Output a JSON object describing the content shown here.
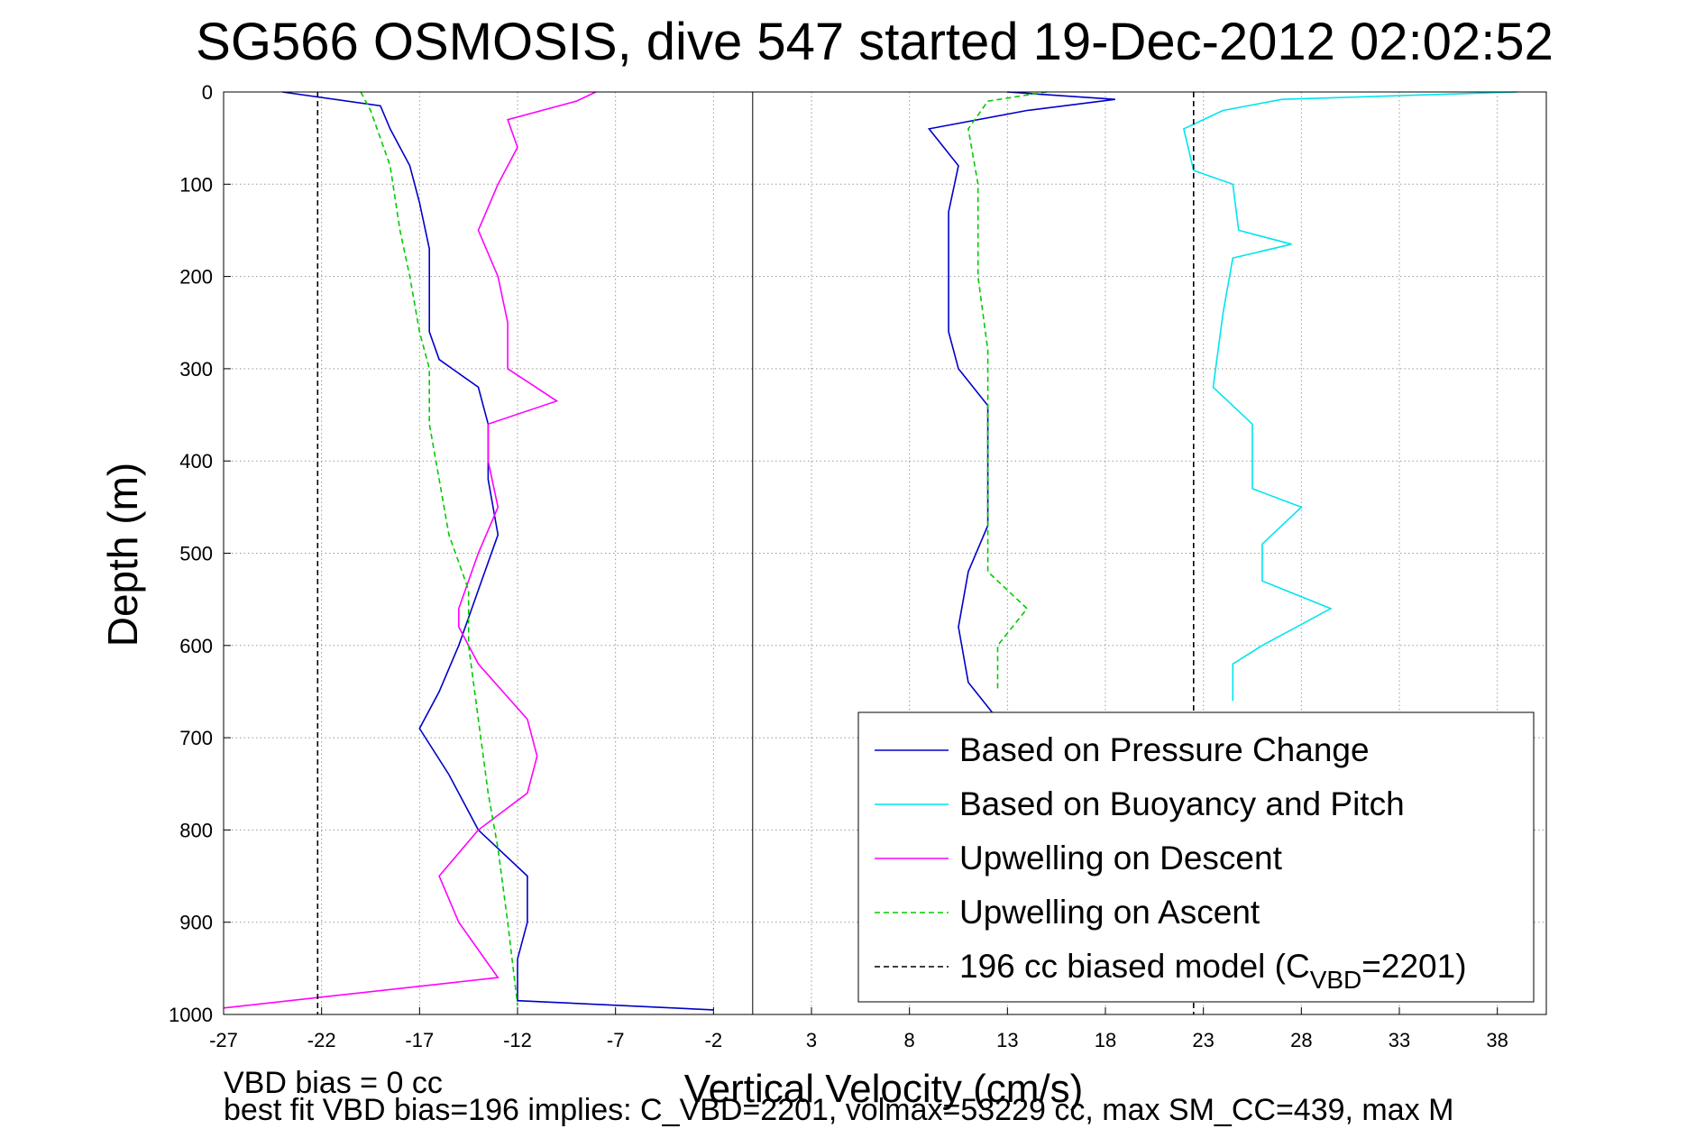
{
  "chart_data": {
    "type": "line",
    "title": "SG566 OSMOSIS, dive 547 started 19-Dec-2012 02:02:52",
    "xlabel": "Vertical Velocity (cm/s)",
    "ylabel": "Depth (m)",
    "xlim": [
      -27,
      40.5
    ],
    "ylim": [
      1000,
      0
    ],
    "y_reversed": true,
    "grid": true,
    "x_ticks": [
      -27,
      -22,
      -17,
      -12,
      -7,
      -2,
      3,
      8,
      13,
      18,
      23,
      28,
      33,
      38
    ],
    "y_ticks": [
      0,
      100,
      200,
      300,
      400,
      500,
      600,
      700,
      800,
      900,
      1000
    ],
    "legend_position": "bottom-right",
    "colors": {
      "pressure": "#0000c8",
      "buoyancy": "#00e5ee",
      "descent": "#ff00ff",
      "ascent": "#00cc00",
      "model": "#000000"
    },
    "series": [
      {
        "name": "Based on Pressure Change",
        "key": "pressure",
        "style": "solid",
        "depth": [
          0,
          15,
          40,
          80,
          120,
          170,
          220,
          260,
          290,
          320,
          360,
          420,
          480,
          540,
          600,
          650,
          690,
          740,
          800,
          850,
          900,
          940,
          985,
          995
        ],
        "velocity": [
          -24,
          -19,
          -18.5,
          -17.5,
          -17,
          -16.5,
          -16.5,
          -16.5,
          -16,
          -14,
          -13.5,
          -13.5,
          -13,
          -14,
          -15,
          -16,
          -17,
          -15.5,
          -14,
          -11.5,
          -11.5,
          -12,
          -12,
          -2
        ]
      },
      {
        "name": "Based on Pressure Change",
        "key": "pressure",
        "style": "solid",
        "depth": [
          0,
          8,
          20,
          40,
          80,
          130,
          200,
          260,
          300,
          340,
          400,
          470,
          520,
          580,
          640,
          680
        ],
        "velocity": [
          13,
          18.5,
          14,
          9,
          10.5,
          10,
          10,
          10,
          10.5,
          12,
          12,
          12,
          11,
          10.5,
          11,
          12.5
        ]
      },
      {
        "name": "Based on Buoyancy and Pitch",
        "key": "buoyancy",
        "style": "solid",
        "depth": [
          0,
          8,
          20,
          40,
          85,
          100,
          150,
          165,
          180,
          240,
          320,
          360,
          430,
          450,
          490,
          530,
          560,
          600,
          620,
          660
        ],
        "velocity": [
          39,
          27,
          24,
          22,
          22.5,
          24.5,
          24.8,
          27.5,
          24.5,
          24,
          23.5,
          25.5,
          25.5,
          28,
          26,
          26,
          29.5,
          26,
          24.5,
          24.5
        ]
      },
      {
        "name": "Upwelling on Descent",
        "key": "descent",
        "style": "solid",
        "depth": [
          0,
          10,
          30,
          60,
          100,
          150,
          200,
          250,
          300,
          335,
          360,
          400,
          450,
          500,
          560,
          580,
          620,
          680,
          720,
          760,
          800,
          850,
          900,
          960,
          993
        ],
        "velocity": [
          -8,
          -9,
          -12.5,
          -12,
          -13,
          -14,
          -13,
          -12.5,
          -12.5,
          -10,
          -13.5,
          -13.5,
          -13,
          -14,
          -15,
          -15,
          -14,
          -11.5,
          -11,
          -11.5,
          -14,
          -16,
          -15,
          -13,
          -27
        ]
      },
      {
        "name": "Upwelling on Ascent",
        "key": "ascent",
        "style": "dashed",
        "depth": [
          0,
          20,
          80,
          150,
          200,
          260,
          300,
          360,
          420,
          480,
          540,
          600,
          680,
          760,
          820,
          900,
          990
        ],
        "velocity": [
          -20,
          -19.5,
          -18.5,
          -18,
          -17.5,
          -17,
          -16.5,
          -16.5,
          -16,
          -15.5,
          -14.5,
          -14.5,
          -14,
          -13.5,
          -13,
          -12.5,
          -12
        ]
      },
      {
        "name": "Upwelling on Ascent",
        "key": "ascent",
        "style": "dashed",
        "depth": [
          0,
          10,
          40,
          100,
          200,
          280,
          330,
          400,
          460,
          520,
          560,
          600,
          650
        ],
        "velocity": [
          15,
          12,
          11,
          11.5,
          11.5,
          12,
          12,
          12,
          12,
          12,
          14,
          12.5,
          12.5
        ]
      },
      {
        "name": "196 cc biased model (CVBD=2201)",
        "key": "model",
        "style": "dashed",
        "depth": [
          0,
          1000
        ],
        "velocity": [
          -22.2,
          -22.2
        ]
      },
      {
        "name": "196 cc biased model (CVBD=2201)",
        "key": "model",
        "style": "dashed",
        "depth": [
          0,
          1000
        ],
        "velocity": [
          22.5,
          22.5
        ]
      }
    ],
    "zero_line": 0,
    "legend": [
      {
        "label": "Based on Pressure Change",
        "key": "pressure",
        "style": "solid"
      },
      {
        "label": "Based on Buoyancy and Pitch",
        "key": "buoyancy",
        "style": "solid"
      },
      {
        "label": "Upwelling on Descent",
        "key": "descent",
        "style": "solid"
      },
      {
        "label": "Upwelling on Ascent",
        "key": "ascent",
        "style": "dashed"
      },
      {
        "label_main": "196 cc biased model (C",
        "label_sub": "VBD",
        "label_tail": "=2201)",
        "key": "model",
        "style": "dashed"
      }
    ]
  },
  "footer": {
    "line1": "VBD bias = 0 cc",
    "line2": "best fit VBD bias=196 implies: C_VBD=2201, volmax=53229 cc, max SM_CC=439, max M"
  }
}
